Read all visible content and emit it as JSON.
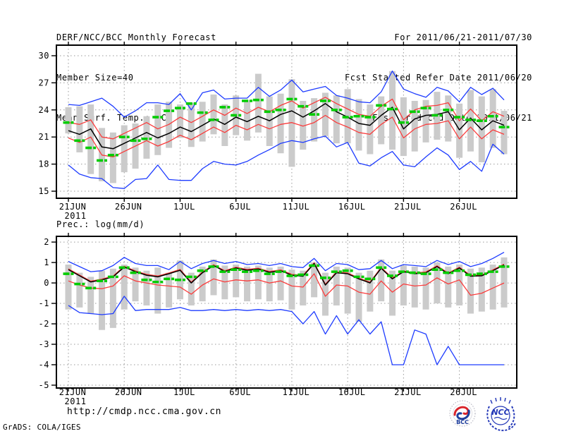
{
  "header": {
    "title": "DERF/NCC/BCC Monthly Forecast",
    "member_size": "Member Size=40",
    "temp_label": "Mean Surf. Temp.: °C",
    "for_range": "For 2011/06/21-2011/07/30",
    "refer_date": "Fcst Started Refer Date 2011/06/20",
    "produced_date": "Fcst Produced Date 2011/06/21"
  },
  "footer": {
    "url": "http://cmdp.ncc.cma.gov.cn",
    "grads_credit": "GrADS: COLA/IGES",
    "logos": [
      {
        "name": "bcc-logo",
        "label": "BCC"
      },
      {
        "name": "ncc-logo",
        "label": "NCC"
      }
    ]
  },
  "colors": {
    "envelope_blue": "#1e3cff",
    "quartile_red": "#fa3c3c",
    "mean_black": "#000000",
    "marker_green": "#00cc00",
    "bar_gray": "#cbcbcb",
    "grid_gray": "#9a9a9a"
  },
  "chart_data": [
    {
      "name": "temperature-forecast",
      "type": "line",
      "title": "Mean Surf. Temp.: °C",
      "x_start_date": "2011/06/21",
      "x_days": 40,
      "x_tick_labels": [
        "21JUN",
        "26JUN",
        "1JUL",
        "6JUL",
        "11JUL",
        "16JUL",
        "21JUL",
        "26JUL"
      ],
      "x_year_label": "2011",
      "y_ticks": [
        30,
        27,
        24,
        21,
        18,
        15
      ],
      "ylim": [
        14.22,
        31.17
      ],
      "grid": true,
      "series": [
        {
          "name": "ensemble-max",
          "color": "#1e3cff",
          "values": [
            24.6,
            24.5,
            24.9,
            25.3,
            24.4,
            23.2,
            23.9,
            24.8,
            24.8,
            24.6,
            25.8,
            24.0,
            25.9,
            26.2,
            25.2,
            25.3,
            25.3,
            26.5,
            25.5,
            26.2,
            27.3,
            26.0,
            26.3,
            26.6,
            25.6,
            25.3,
            24.9,
            24.8,
            26.0,
            28.3,
            26.3,
            25.8,
            25.4,
            26.5,
            26.1,
            24.9,
            26.5,
            25.7,
            26.4,
            25.1
          ]
        },
        {
          "name": "upper-quartile",
          "color": "#fa3c3c",
          "values": [
            22.6,
            22.4,
            22.9,
            21.0,
            20.8,
            21.4,
            22.0,
            22.6,
            21.9,
            22.4,
            23.2,
            22.6,
            23.3,
            24.0,
            23.4,
            24.2,
            23.6,
            24.3,
            23.8,
            24.5,
            25.0,
            24.2,
            24.8,
            25.4,
            24.7,
            24.1,
            23.5,
            23.3,
            24.4,
            25.2,
            22.9,
            24.0,
            24.4,
            24.5,
            24.8,
            22.8,
            24.1,
            22.8,
            23.8,
            23.3
          ]
        },
        {
          "name": "ensemble-mean",
          "color": "#000000",
          "values": [
            21.7,
            21.3,
            21.9,
            19.9,
            19.7,
            20.3,
            20.9,
            21.5,
            20.9,
            21.4,
            22.1,
            21.6,
            22.3,
            23.0,
            22.4,
            23.2,
            22.7,
            23.3,
            22.8,
            23.5,
            23.9,
            23.2,
            23.9,
            24.7,
            23.8,
            23.2,
            22.5,
            22.3,
            23.4,
            24.3,
            21.9,
            23.0,
            23.4,
            23.5,
            23.8,
            21.8,
            23.1,
            21.8,
            22.8,
            22.3
          ]
        },
        {
          "name": "lower-quartile",
          "color": "#fa3c3c",
          "values": [
            20.9,
            20.4,
            21.0,
            19.0,
            18.8,
            19.4,
            20.0,
            20.6,
            20.0,
            20.5,
            21.2,
            20.7,
            21.4,
            22.1,
            21.5,
            22.3,
            21.8,
            22.4,
            21.9,
            22.4,
            22.6,
            22.2,
            22.6,
            23.4,
            22.6,
            22.1,
            21.5,
            21.3,
            22.4,
            23.2,
            20.9,
            21.9,
            22.4,
            22.5,
            22.8,
            20.8,
            22.1,
            20.8,
            21.8,
            21.3
          ]
        },
        {
          "name": "ensemble-min",
          "color": "#1e3cff",
          "values": [
            17.9,
            16.9,
            16.5,
            16.4,
            15.4,
            15.3,
            16.3,
            16.4,
            17.9,
            16.3,
            16.2,
            16.2,
            17.5,
            18.3,
            18.0,
            17.9,
            18.3,
            19.0,
            19.6,
            20.3,
            20.6,
            20.4,
            20.8,
            21.1,
            19.9,
            20.4,
            18.1,
            17.8,
            18.7,
            19.4,
            17.9,
            17.7,
            18.8,
            19.8,
            19.0,
            17.4,
            18.3,
            17.2,
            20.2,
            19.1
          ]
        }
      ],
      "green_dashes": {
        "name": "reference-marker",
        "color": "#00cc00",
        "values": [
          22.6,
          20.6,
          19.8,
          18.4,
          19.0,
          21.0,
          20.6,
          20.8,
          23.2,
          23.9,
          24.2,
          24.7,
          23.7,
          22.9,
          24.3,
          23.4,
          25.0,
          25.1,
          23.8,
          24.0,
          25.2,
          24.4,
          23.5,
          25.0,
          24.0,
          23.2,
          23.3,
          23.2,
          24.5,
          24.1,
          22.6,
          23.8,
          24.2,
          23.4,
          24.0,
          23.2,
          22.9,
          22.8,
          23.3,
          22.1
        ]
      },
      "gray_bars": {
        "name": "member-spread",
        "color": "#cbcbcb",
        "high": [
          24.3,
          24.4,
          24.6,
          22.0,
          21.5,
          22.3,
          22.5,
          23.3,
          24.6,
          24.9,
          24.6,
          24.8,
          24.9,
          25.7,
          24.6,
          25.6,
          25.1,
          28.0,
          25.5,
          25.8,
          27.4,
          25.0,
          25.3,
          25.9,
          25.6,
          26.3,
          25.2,
          24.6,
          25.5,
          28.3,
          25.4,
          25.0,
          25.1,
          26.0,
          25.6,
          24.7,
          26.2,
          25.5,
          26.3,
          23.9
        ],
        "low": [
          21.4,
          19.3,
          16.9,
          16.1,
          15.9,
          17.1,
          17.5,
          18.6,
          19.0,
          19.8,
          20.9,
          19.9,
          20.5,
          21.3,
          20.0,
          21.2,
          20.6,
          21.5,
          20.0,
          19.2,
          17.7,
          19.6,
          20.5,
          21.1,
          20.3,
          20.3,
          19.5,
          19.1,
          20.2,
          19.6,
          18.9,
          19.4,
          20.4,
          20.7,
          20.5,
          18.7,
          19.4,
          18.2,
          19.8,
          19.1
        ]
      }
    },
    {
      "name": "precipitation-forecast",
      "type": "line",
      "title": "Prec.: log(mm/d)",
      "x_start_date": "2011/06/21",
      "x_days": 40,
      "x_tick_labels": [
        "21JUN",
        "26JUN",
        "1JUL",
        "6JUL",
        "11JUL",
        "16JUL",
        "21JUL",
        "26JUL"
      ],
      "x_year_label": "2011",
      "y_ticks": [
        2,
        1,
        0,
        -1,
        -2,
        -3,
        -4,
        -5
      ],
      "ylim": [
        -5.14,
        2.28
      ],
      "grid": true,
      "series": [
        {
          "name": "ensemble-max",
          "color": "#1e3cff",
          "values": [
            1.05,
            0.8,
            0.55,
            0.6,
            0.85,
            1.25,
            0.95,
            0.85,
            0.85,
            0.65,
            1.05,
            0.7,
            0.95,
            1.1,
            0.95,
            1.05,
            0.9,
            0.95,
            0.85,
            0.95,
            0.8,
            0.75,
            1.2,
            0.6,
            0.95,
            0.9,
            0.65,
            0.7,
            1.1,
            0.7,
            0.9,
            0.85,
            0.8,
            1.1,
            0.9,
            1.05,
            0.8,
            0.95,
            1.2,
            1.5
          ]
        },
        {
          "name": "upper-quartile",
          "color": "#fa3c3c",
          "values": [
            0.69,
            0.39,
            0.09,
            0.19,
            0.34,
            0.82,
            0.59,
            0.42,
            0.34,
            0.49,
            0.66,
            0.04,
            0.54,
            0.89,
            0.6,
            0.77,
            0.66,
            0.72,
            0.56,
            0.64,
            0.42,
            0.37,
            0.99,
            -0.06,
            0.54,
            0.49,
            0.24,
            0.04,
            0.76,
            0.24,
            0.59,
            0.49,
            0.54,
            0.84,
            0.49,
            0.77,
            0.37,
            0.39,
            0.64,
            0.92
          ]
        },
        {
          "name": "ensemble-mean",
          "color": "#000000",
          "values": [
            0.65,
            0.35,
            0.05,
            0.15,
            0.3,
            0.78,
            0.55,
            0.38,
            0.3,
            0.45,
            0.62,
            0.0,
            0.5,
            0.85,
            0.56,
            0.73,
            0.62,
            0.68,
            0.52,
            0.6,
            0.38,
            0.33,
            0.95,
            -0.1,
            0.5,
            0.45,
            0.2,
            0.0,
            0.72,
            0.2,
            0.55,
            0.45,
            0.5,
            0.8,
            0.45,
            0.73,
            0.33,
            0.35,
            0.6,
            0.88
          ]
        },
        {
          "name": "lower-quartile",
          "color": "#fa3c3c",
          "values": [
            0.1,
            -0.1,
            -0.25,
            -0.28,
            -0.15,
            0.35,
            0.1,
            0.0,
            -0.1,
            -0.15,
            -0.2,
            -0.55,
            -0.1,
            0.2,
            0.05,
            0.15,
            0.1,
            0.15,
            0.0,
            0.1,
            -0.15,
            -0.2,
            0.45,
            -0.65,
            -0.1,
            -0.15,
            -0.45,
            -0.55,
            0.1,
            -0.45,
            -0.05,
            -0.15,
            -0.1,
            0.25,
            -0.05,
            0.15,
            -0.6,
            -0.5,
            -0.25,
            0.0
          ]
        },
        {
          "name": "ensemble-min",
          "color": "#1e3cff",
          "values": [
            -1.1,
            -1.45,
            -1.5,
            -1.55,
            -1.5,
            -0.65,
            -1.35,
            -1.3,
            -1.3,
            -1.3,
            -1.2,
            -1.35,
            -1.35,
            -1.3,
            -1.35,
            -1.3,
            -1.35,
            -1.3,
            -1.35,
            -1.3,
            -1.4,
            -2.0,
            -1.4,
            -2.5,
            -1.6,
            -2.5,
            -1.8,
            -2.5,
            -1.9,
            -4.0,
            -4.0,
            -2.3,
            -2.5,
            -4.0,
            -3.1,
            -4.0,
            -4.0,
            -4.0,
            -4.0,
            -4.0
          ]
        }
      ],
      "green_dashes": {
        "name": "reference-marker",
        "color": "#00cc00",
        "values": [
          0.45,
          -0.05,
          -0.25,
          0.1,
          0.3,
          0.75,
          0.5,
          0.15,
          0.05,
          0.2,
          0.15,
          0.3,
          0.6,
          0.8,
          0.55,
          0.65,
          0.55,
          0.6,
          0.45,
          0.55,
          0.35,
          0.4,
          0.85,
          0.25,
          0.55,
          0.6,
          0.3,
          0.2,
          0.75,
          0.35,
          0.55,
          0.5,
          0.45,
          0.65,
          0.5,
          0.6,
          0.4,
          0.45,
          0.55,
          0.8
        ]
      },
      "gray_bars": {
        "name": "member-spread",
        "color": "#cbcbcb",
        "high": [
          0.9,
          0.5,
          0.3,
          0.6,
          0.7,
          0.9,
          0.75,
          0.6,
          0.75,
          0.5,
          1.1,
          0.5,
          0.8,
          1.15,
          0.85,
          0.9,
          0.8,
          0.85,
          0.75,
          0.8,
          0.65,
          0.6,
          1.0,
          0.5,
          0.8,
          0.75,
          0.5,
          0.6,
          1.15,
          0.6,
          0.85,
          0.8,
          0.75,
          1.0,
          0.8,
          0.9,
          0.7,
          0.75,
          0.9,
          1.25
        ],
        "low": [
          -1.3,
          -1.2,
          -1.5,
          -2.3,
          -2.2,
          -1.3,
          -0.9,
          -1.1,
          -1.5,
          -1.2,
          -0.8,
          -1.1,
          -0.9,
          -0.6,
          -0.8,
          -0.7,
          -0.9,
          -0.8,
          -0.9,
          -0.85,
          -1.3,
          -1.1,
          -0.7,
          -1.6,
          -1.1,
          -1.5,
          -1.9,
          -1.4,
          -0.9,
          -1.6,
          -1.1,
          -1.2,
          -1.3,
          -1.0,
          -1.2,
          -1.1,
          -1.5,
          -1.4,
          -1.3,
          -1.2
        ]
      }
    }
  ]
}
